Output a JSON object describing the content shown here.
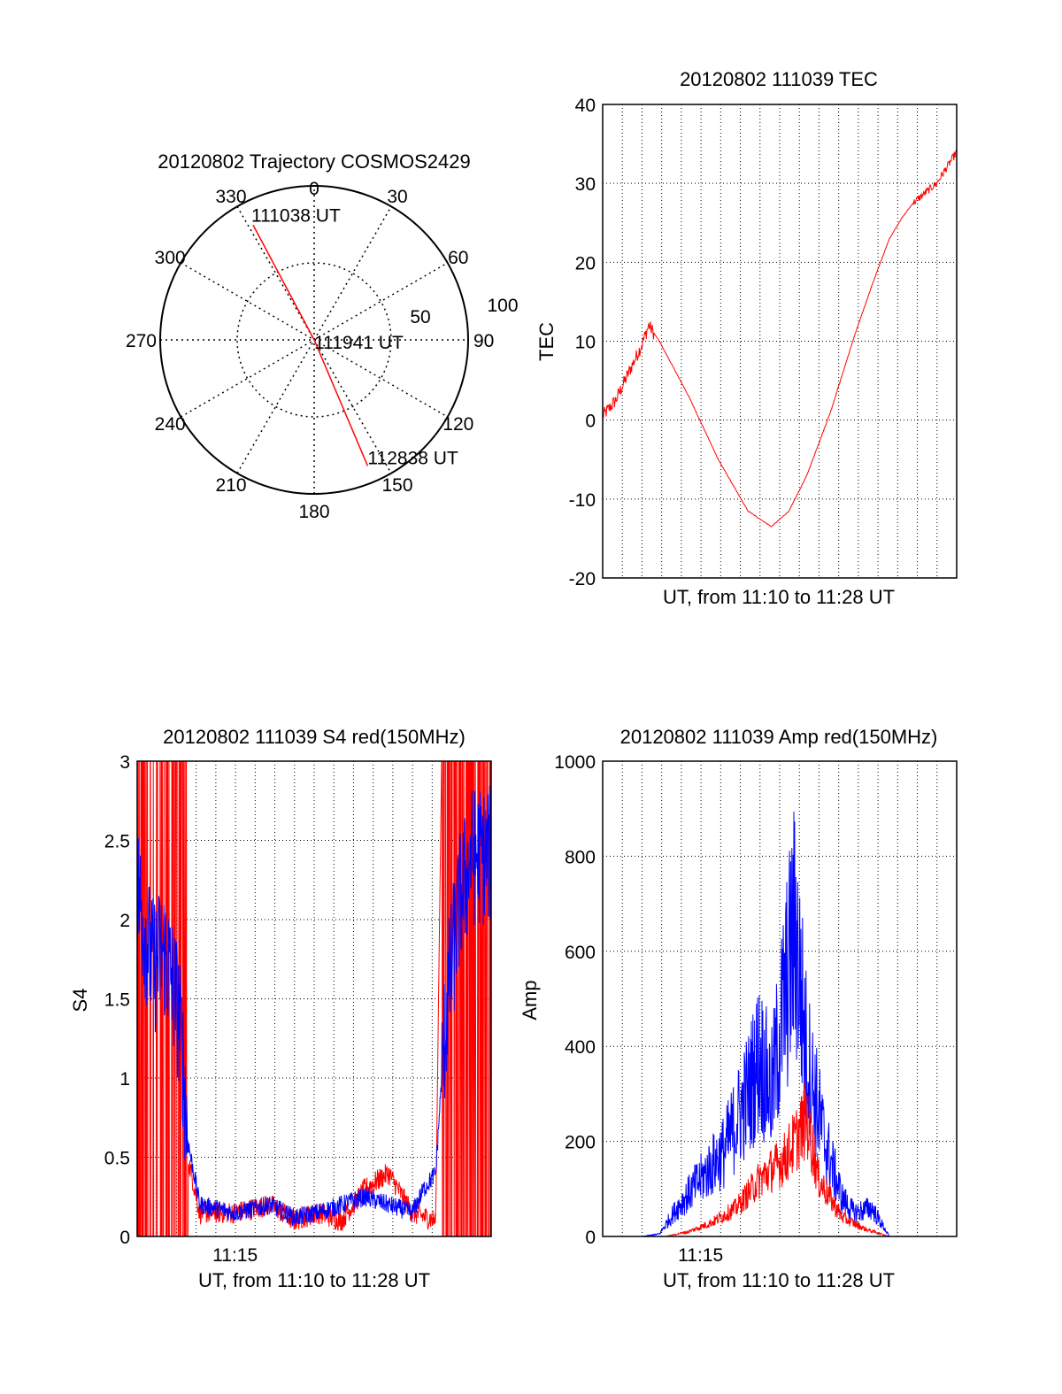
{
  "chart_data": [
    {
      "type": "polar",
      "title": "20120802 Trajectory COSMOS2429",
      "angle_labels": [
        "0",
        "30",
        "60",
        "90",
        "120",
        "150",
        "180",
        "210",
        "240",
        "270",
        "300",
        "330"
      ],
      "radial_labels": [
        "50",
        "100"
      ],
      "trajectory_color": "#ff0000",
      "trajectory": [
        {
          "azimuth": 332,
          "elevation": 14,
          "label": "111038 UT"
        },
        {
          "azimuth": 0,
          "elevation": 90,
          "label": "111941 UT"
        },
        {
          "azimuth": 157,
          "elevation": 10,
          "label": "112838 UT"
        }
      ]
    },
    {
      "type": "line",
      "title": "20120802 111039 TEC",
      "xlabel": "UT, from 11:10 to 11:28 UT",
      "ylabel": "TEC",
      "xlim": [
        11.167,
        11.467
      ],
      "ylim": [
        -20,
        40
      ],
      "yticks": [
        -20,
        -10,
        0,
        10,
        20,
        30,
        40
      ],
      "grid": true,
      "series": [
        {
          "color": "#ff0000",
          "x": [
            11.167,
            11.178,
            11.189,
            11.2,
            11.206,
            11.215,
            11.24,
            11.265,
            11.29,
            11.31,
            11.325,
            11.34,
            11.36,
            11.38,
            11.395,
            11.41,
            11.42,
            11.43,
            11.45,
            11.467
          ],
          "y": [
            0.5,
            2.5,
            6,
            9.5,
            12,
            10,
            3,
            -5,
            -11.5,
            -13.5,
            -11.5,
            -7,
            1,
            10.5,
            17,
            23,
            25.5,
            27.5,
            30,
            34
          ]
        }
      ]
    },
    {
      "type": "line",
      "title": "20120802 111039 S4 red(150MHz)",
      "xlabel": "UT, from 11:10 to 11:28 UT",
      "ylabel": "S4",
      "xlim": [
        11.167,
        11.467
      ],
      "ylim": [
        0,
        3
      ],
      "yticks": [
        0,
        0.5,
        1,
        1.5,
        2,
        2.5,
        3
      ],
      "xticks": [
        {
          "value": 11.25,
          "label": "11:15"
        }
      ],
      "grid": true,
      "series": [
        {
          "color": "#0000ff",
          "x": [
            11.167,
            11.18,
            11.19,
            11.2,
            11.205,
            11.21,
            11.22,
            11.25,
            11.28,
            11.3,
            11.32,
            11.34,
            11.36,
            11.38,
            11.4,
            11.41,
            11.42,
            11.425,
            11.43,
            11.44,
            11.45,
            11.467
          ],
          "y": [
            2.2,
            1.7,
            1.8,
            1.5,
            1.2,
            0.6,
            0.2,
            0.15,
            0.2,
            0.12,
            0.15,
            0.2,
            0.25,
            0.2,
            0.15,
            0.3,
            0.4,
            1.0,
            1.5,
            2.1,
            2.4,
            2.4
          ]
        },
        {
          "color": "#ff0000",
          "x": [
            11.167,
            11.19,
            11.205,
            11.21,
            11.22,
            11.25,
            11.28,
            11.3,
            11.32,
            11.34,
            11.36,
            11.38,
            11.4,
            11.42,
            11.425,
            11.435,
            11.45,
            11.467
          ],
          "y": [
            3.0,
            3.0,
            3.0,
            0.5,
            0.15,
            0.15,
            0.2,
            0.1,
            0.15,
            0.1,
            0.3,
            0.4,
            0.15,
            0.1,
            3.0,
            3.0,
            3.0,
            3.0
          ]
        }
      ]
    },
    {
      "type": "line",
      "title": "20120802 111039 Amp red(150MHz)",
      "xlabel": "UT, from 11:10 to 11:28 UT",
      "ylabel": "Amp",
      "xlim": [
        11.167,
        11.467
      ],
      "ylim": [
        0,
        1000
      ],
      "yticks": [
        0,
        200,
        400,
        600,
        800,
        1000
      ],
      "xticks": [
        {
          "value": 11.25,
          "label": "11:15"
        }
      ],
      "grid": true,
      "series": [
        {
          "color": "#0000ff",
          "x": [
            11.167,
            11.2,
            11.215,
            11.23,
            11.25,
            11.27,
            11.29,
            11.3,
            11.31,
            11.32,
            11.33,
            11.34,
            11.355,
            11.37,
            11.38,
            11.395,
            11.41,
            11.467
          ],
          "y": [
            0,
            0,
            5,
            60,
            120,
            180,
            300,
            380,
            300,
            480,
            650,
            380,
            200,
            80,
            50,
            60,
            0,
            0
          ]
        },
        {
          "color": "#ff0000",
          "x": [
            11.167,
            11.22,
            11.24,
            11.26,
            11.28,
            11.3,
            11.32,
            11.33,
            11.34,
            11.35,
            11.37,
            11.39,
            11.41,
            11.467
          ],
          "y": [
            0,
            0,
            10,
            30,
            60,
            120,
            160,
            200,
            250,
            120,
            40,
            15,
            0,
            0
          ]
        }
      ]
    }
  ]
}
